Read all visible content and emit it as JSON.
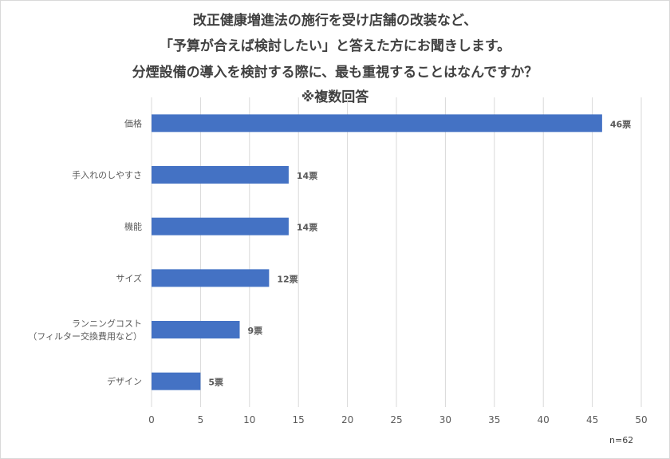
{
  "title_lines": [
    "改正健康増進法の施行を受け店舗の改装など、",
    "「予算が合えば検討したい」と答えた方にお聞きします。",
    "分煙設備の導入を検討する際に、最も重視することはなんですか？",
    "※複数回答"
  ],
  "sample_note": "n=62",
  "colors": {
    "bar": "#4472c4",
    "grid": "#d9d9d9",
    "text": "#595959",
    "title": "#404040"
  },
  "chart_data": {
    "type": "bar",
    "orientation": "horizontal",
    "categories": [
      [
        "価格"
      ],
      [
        "手入れのしやすさ"
      ],
      [
        "機能"
      ],
      [
        "サイズ"
      ],
      [
        "ランニングコスト",
        "（フィルター交換費用など）"
      ],
      [
        "デザイン"
      ]
    ],
    "values": [
      46,
      14,
      14,
      12,
      9,
      5
    ],
    "data_labels": [
      "46票",
      "14票",
      "14票",
      "12票",
      "9票",
      "5票"
    ],
    "xlim": [
      0,
      50
    ],
    "xticks": [
      0,
      5,
      10,
      15,
      20,
      25,
      30,
      35,
      40,
      45,
      50
    ],
    "grid": true,
    "legend": "none"
  }
}
